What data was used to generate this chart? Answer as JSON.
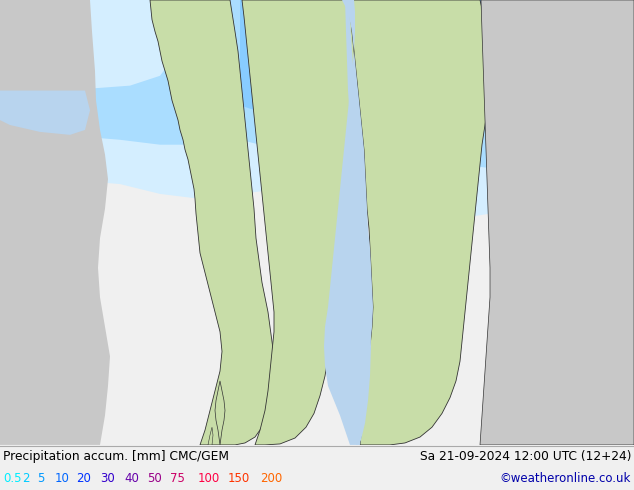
{
  "title_left": "Precipitation accum. [mm] CMC/GEM",
  "title_right": "Sa 21-09-2024 12:00 UTC (12+24)",
  "credit": "©weatheronline.co.uk",
  "legend_values": [
    "0.5",
    "2",
    "5",
    "10",
    "20",
    "30",
    "40",
    "50",
    "75",
    "100",
    "150",
    "200"
  ],
  "legend_colors": [
    "#00eeff",
    "#00ccff",
    "#0099ff",
    "#0066ff",
    "#0033ff",
    "#3300cc",
    "#6600aa",
    "#990088",
    "#cc0066",
    "#ff0044",
    "#ff3300",
    "#ff6600"
  ],
  "bg_color": "#f0f0f0",
  "sea_color": "#b8d4ee",
  "land_green_color": "#c8dda8",
  "land_gray_color": "#c8c8c8",
  "land_light_gray": "#d8d8d8",
  "precip_0_5_color": "#d4eeff",
  "precip_2_color": "#aaddff",
  "precip_5_color": "#88ccff",
  "precip_10_color": "#55aaff",
  "precip_20_color": "#3388ff",
  "precip_30_color": "#2266ff",
  "precip_darker_color": "#1144dd",
  "text_color": "#000000",
  "credit_color": "#0000aa",
  "border_color": "#333333",
  "figwidth": 6.34,
  "figheight": 4.9,
  "dpi": 100,
  "info_bar_height": 0.092,
  "norway_color": "#c8dda8",
  "sweden_color": "#c8dda8",
  "finland_color": "#c8dda8",
  "denmark_color": "#c8dda8",
  "russia_color": "#c8c8c8",
  "uk_color": "#cccccc",
  "baltic_sea_color": "#b8d4ee",
  "north_sea_color": "#b8d4ee"
}
